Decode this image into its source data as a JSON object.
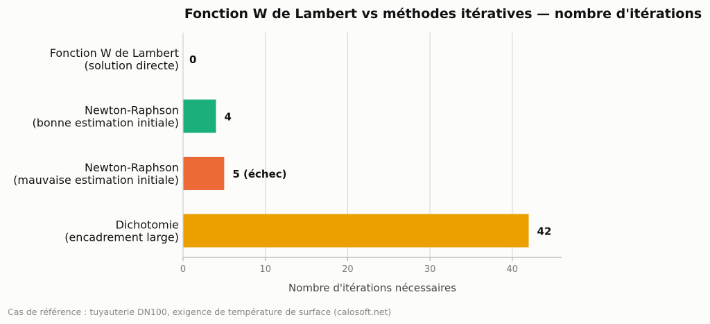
{
  "chart_data": {
    "type": "bar",
    "orientation": "horizontal",
    "title": "Fonction W de Lambert vs méthodes itératives — nombre d'itérations",
    "xlabel": "Nombre d'itérations nécessaires",
    "ylabel": "",
    "xlim": [
      0,
      46
    ],
    "xticks": [
      0,
      10,
      20,
      30,
      40
    ],
    "grid": "vertical",
    "legend": "none",
    "categories": [
      [
        "Fonction W de Lambert",
        "(solution directe)"
      ],
      [
        "Newton-Raphson",
        "(bonne estimation initiale)"
      ],
      [
        "Newton-Raphson",
        "(mauvaise estimation initiale)"
      ],
      [
        "Dichotomie",
        "(encadrement large)"
      ]
    ],
    "values": [
      0,
      4,
      5,
      42
    ],
    "data_labels": [
      "0",
      "4",
      "5 (échec)",
      "42"
    ],
    "colors": [
      "#1aaa7a",
      "#1bb07b",
      "#ec6a36",
      "#eca000"
    ]
  },
  "footnote": "Cas de référence : tuyauterie DN100, exigence de température de surface (calosoft.net)"
}
